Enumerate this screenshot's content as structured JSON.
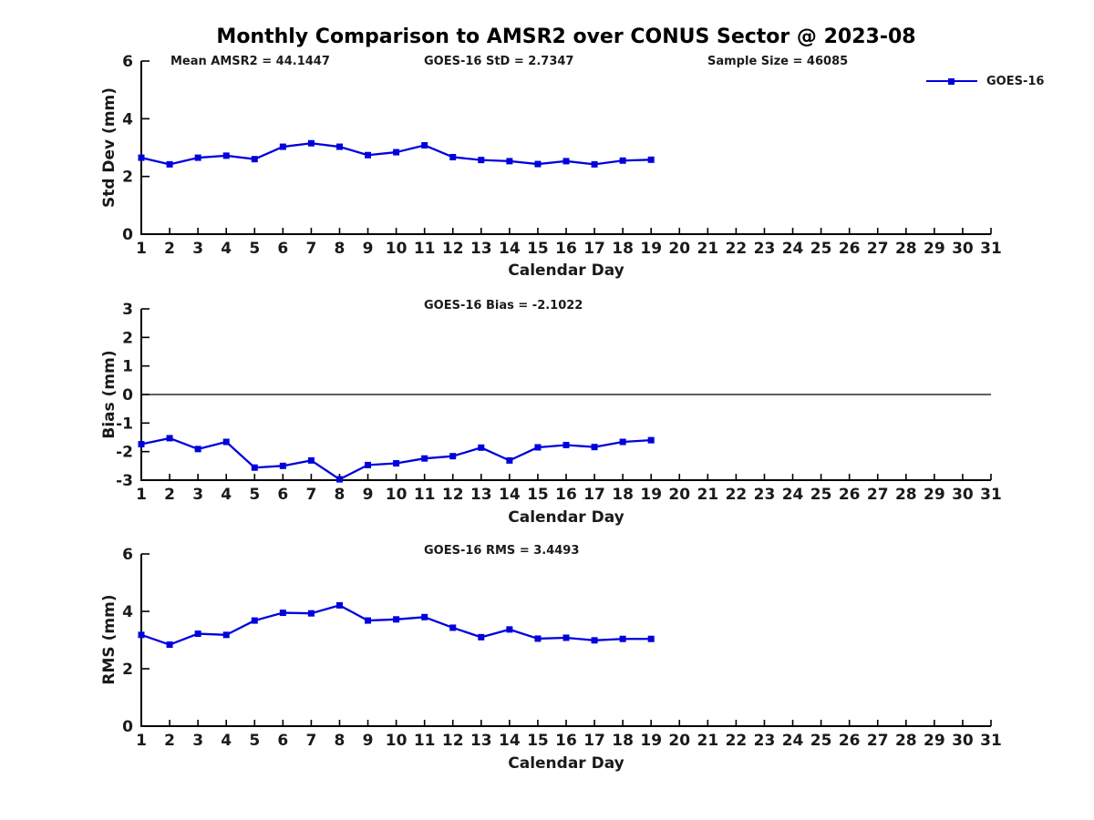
{
  "title": "Monthly Comparison to AMSR2 over CONUS Sector @ 2023-08",
  "colors": {
    "line": "#0000dd",
    "axis": "#000000",
    "text": "#1a1a1a"
  },
  "legend": {
    "label": "GOES-16",
    "color": "#0000dd",
    "marker": "square"
  },
  "chart_data": [
    {
      "type": "line",
      "panel": "std-dev",
      "subtitle_left": "Mean AMSR2 = 44.1447",
      "subtitle_center": "GOES-16 StD = 2.7347",
      "subtitle_right": "Sample Size = 46085",
      "xlabel": "Calendar Day",
      "ylabel": "Std Dev (mm)",
      "xlim": [
        1,
        31
      ],
      "ylim": [
        0,
        6
      ],
      "xticks": [
        1,
        2,
        3,
        4,
        5,
        6,
        7,
        8,
        9,
        10,
        11,
        12,
        13,
        14,
        15,
        16,
        17,
        18,
        19,
        20,
        21,
        22,
        23,
        24,
        25,
        26,
        27,
        28,
        29,
        30,
        31
      ],
      "yticks": [
        0,
        2,
        4,
        6
      ],
      "zero_line": false,
      "grid": false,
      "legend_position": "top-right-outside",
      "x": [
        1,
        2,
        3,
        4,
        5,
        6,
        7,
        8,
        9,
        10,
        11,
        12,
        13,
        14,
        15,
        16,
        17,
        18,
        19
      ],
      "series": [
        {
          "name": "GOES-16",
          "values": [
            2.65,
            2.42,
            2.65,
            2.72,
            2.6,
            3.03,
            3.15,
            3.03,
            2.74,
            2.84,
            3.08,
            2.67,
            2.57,
            2.53,
            2.43,
            2.53,
            2.42,
            2.55,
            2.58
          ]
        }
      ]
    },
    {
      "type": "line",
      "panel": "bias",
      "title": "GOES-16 Bias = -2.1022",
      "xlabel": "Calendar Day",
      "ylabel": "Bias (mm)",
      "xlim": [
        1,
        31
      ],
      "ylim": [
        -3,
        3
      ],
      "xticks": [
        1,
        2,
        3,
        4,
        5,
        6,
        7,
        8,
        9,
        10,
        11,
        12,
        13,
        14,
        15,
        16,
        17,
        18,
        19,
        20,
        21,
        22,
        23,
        24,
        25,
        26,
        27,
        28,
        29,
        30,
        31
      ],
      "yticks": [
        -3,
        -2,
        -1,
        0,
        1,
        2,
        3
      ],
      "zero_line": true,
      "grid": false,
      "x": [
        1,
        2,
        3,
        4,
        5,
        6,
        7,
        8,
        9,
        10,
        11,
        12,
        13,
        14,
        15,
        16,
        17,
        18,
        19
      ],
      "series": [
        {
          "name": "GOES-16",
          "values": [
            -1.74,
            -1.53,
            -1.91,
            -1.66,
            -2.56,
            -2.5,
            -2.31,
            -2.97,
            -2.47,
            -2.41,
            -2.24,
            -2.16,
            -1.86,
            -2.31,
            -1.85,
            -1.77,
            -1.84,
            -1.66,
            -1.6
          ]
        }
      ]
    },
    {
      "type": "line",
      "panel": "rms",
      "title": "GOES-16 RMS = 3.4493",
      "xlabel": "Calendar Day",
      "ylabel": "RMS (mm)",
      "xlim": [
        1,
        31
      ],
      "ylim": [
        0,
        6
      ],
      "xticks": [
        1,
        2,
        3,
        4,
        5,
        6,
        7,
        8,
        9,
        10,
        11,
        12,
        13,
        14,
        15,
        16,
        17,
        18,
        19,
        20,
        21,
        22,
        23,
        24,
        25,
        26,
        27,
        28,
        29,
        30,
        31
      ],
      "yticks": [
        0,
        2,
        4,
        6
      ],
      "zero_line": false,
      "grid": false,
      "x": [
        1,
        2,
        3,
        4,
        5,
        6,
        7,
        8,
        9,
        10,
        11,
        12,
        13,
        14,
        15,
        16,
        17,
        18,
        19
      ],
      "series": [
        {
          "name": "GOES-16",
          "values": [
            3.18,
            2.84,
            3.22,
            3.18,
            3.68,
            3.95,
            3.93,
            4.21,
            3.68,
            3.72,
            3.8,
            3.43,
            3.1,
            3.37,
            3.05,
            3.08,
            2.99,
            3.04,
            3.04
          ]
        }
      ]
    }
  ]
}
